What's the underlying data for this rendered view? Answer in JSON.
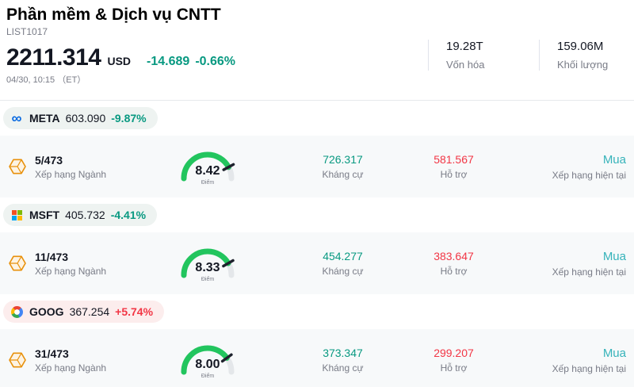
{
  "header": {
    "title": "Phần mềm & Dịch vụ CNTT",
    "list_id": "LIST1017",
    "price": "2211.314",
    "currency": "USD",
    "change": "-14.689",
    "change_pct": "-0.66%",
    "datetime": "04/30, 10:15",
    "timezone": "（ET）",
    "market_cap_value": "19.28T",
    "market_cap_label": "Vốn hóa",
    "volume_value": "159.06M",
    "volume_label": "Khối lượng"
  },
  "colors": {
    "down": "#089981",
    "up": "#f23645",
    "pill_down": "#eef3f1",
    "pill_up": "#fceded",
    "gauge": "#22c55e",
    "needle": "#1e222d",
    "rating": "#36b3ba"
  },
  "gauge": {
    "max": 10
  },
  "stocks": [
    {
      "ticker": "META",
      "price": "603.090",
      "change_pct": "-9.87%",
      "direction": "down",
      "logo": "meta-logo",
      "rank": "5/473",
      "rank_label": "Xếp hạng Ngành",
      "score": "8.42",
      "score_label": "Điểm",
      "resistance_value": "726.317",
      "resistance_label": "Kháng cự",
      "support_value": "581.567",
      "support_label": "Hỗ trợ",
      "rating_value": "Mua",
      "rating_label": "Xếp hạng hiện tại"
    },
    {
      "ticker": "MSFT",
      "price": "405.732",
      "change_pct": "-4.41%",
      "direction": "down",
      "logo": "microsoft-logo",
      "rank": "11/473",
      "rank_label": "Xếp hạng Ngành",
      "score": "8.33",
      "score_label": "Điểm",
      "resistance_value": "454.277",
      "resistance_label": "Kháng cự",
      "support_value": "383.647",
      "support_label": "Hỗ trợ",
      "rating_value": "Mua",
      "rating_label": "Xếp hạng hiện tại"
    },
    {
      "ticker": "GOOG",
      "price": "367.254",
      "change_pct": "+5.74%",
      "direction": "up",
      "logo": "google-logo",
      "rank": "31/473",
      "rank_label": "Xếp hạng Ngành",
      "score": "8.00",
      "score_label": "Điểm",
      "resistance_value": "373.347",
      "resistance_label": "Kháng cự",
      "support_value": "299.207",
      "support_label": "Hỗ trợ",
      "rating_value": "Mua",
      "rating_label": "Xếp hạng hiện tại"
    }
  ]
}
